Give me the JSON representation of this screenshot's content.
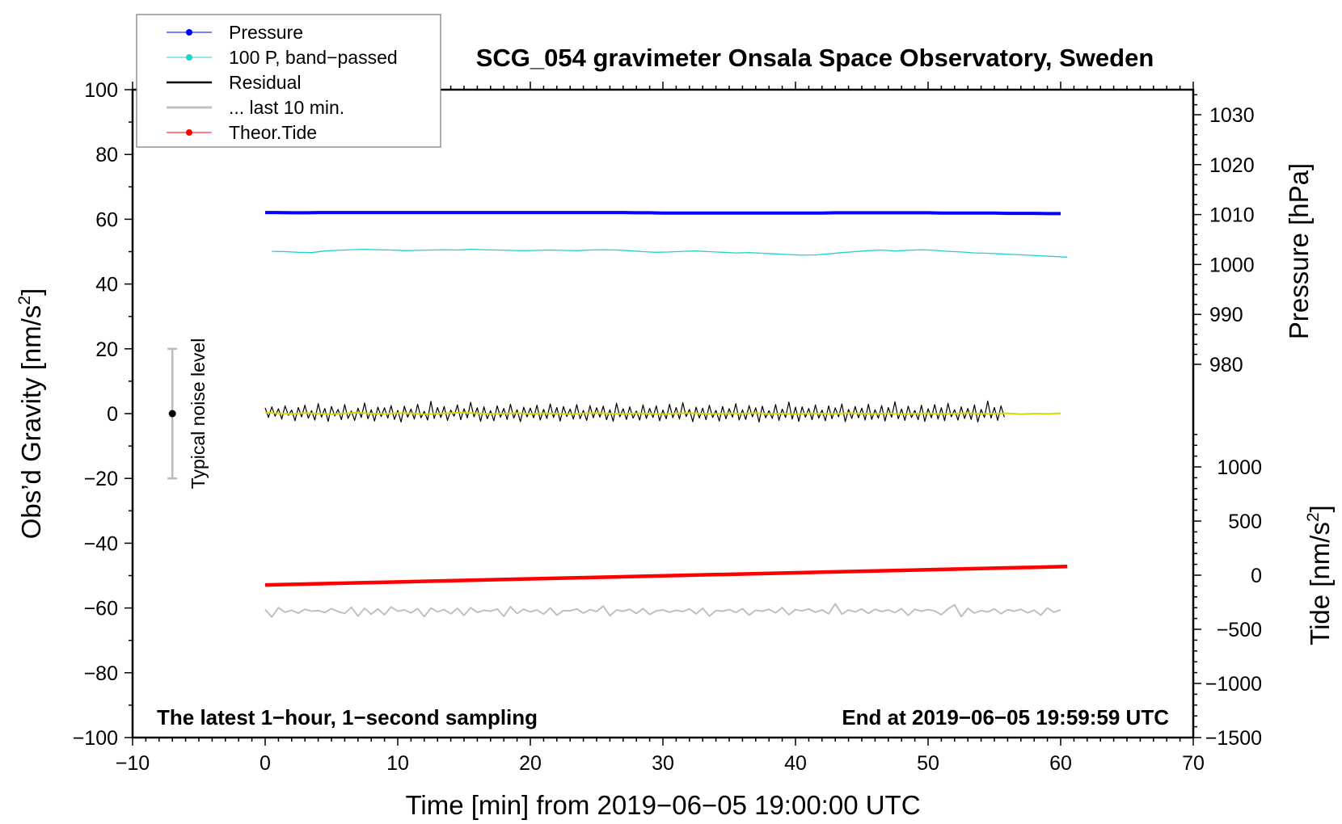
{
  "chart_data": {
    "type": "line",
    "title": "SCG_054 gravimeter Onsala Space Observatory, Sweden",
    "xlabel": "Time [min] from 2019−06−05 19:00:00 UTC",
    "ylabel": {
      "text": "Obs’d Gravity [nm/s",
      "sup": "2",
      "end": "]"
    },
    "y2label": "Pressure [hPa]",
    "y3label": {
      "text": "Tide [nm/s",
      "sup": "2",
      "end": "]"
    },
    "xlim": [
      -10,
      70
    ],
    "ylim": [
      -100,
      100
    ],
    "pressure_lim_ticks": [
      980,
      1030
    ],
    "tide_lim": [
      -1500,
      1000
    ],
    "x_ticks": [
      "−10",
      "0",
      "10",
      "20",
      "30",
      "40",
      "50",
      "60",
      "70"
    ],
    "y_ticks": [
      "−100",
      "−80",
      "−60",
      "−40",
      "−20",
      "0",
      "20",
      "40",
      "60",
      "80",
      "100"
    ],
    "pressure_ticks": [
      "980",
      "990",
      "1000",
      "1010",
      "1020",
      "1030"
    ],
    "tide_ticks": [
      "−1500",
      "−1000",
      "−500",
      "0",
      "500",
      "1000"
    ],
    "annotation_left": "The latest 1−hour, 1−second sampling",
    "annotation_right": "End at 2019−06−05 19:59:59 UTC",
    "noise_indicator": {
      "label": "Typical noise level",
      "x": -7,
      "center": 0,
      "half_range": 20
    },
    "legend": {
      "placement": "top-left",
      "entries": [
        "Pressure",
        "100 P, band−passed",
        "Residual",
        "... last 10 min.",
        "Theor.Tide"
      ]
    },
    "colors": {
      "pressure": "#0000ff",
      "bandpassed": "#20d0d0",
      "residual": "#000000",
      "smoothed": "#d8d800",
      "last10": "#c0c0c0",
      "tide": "#ff0000"
    },
    "series": [
      {
        "name": "Pressure",
        "axis": "pressure_hPa",
        "x_start": 0,
        "x_step": 1,
        "values": [
          1010.4,
          1010.4,
          1010.35,
          1010.35,
          1010.4,
          1010.4,
          1010.4,
          1010.4,
          1010.4,
          1010.4,
          1010.4,
          1010.4,
          1010.4,
          1010.4,
          1010.4,
          1010.4,
          1010.4,
          1010.4,
          1010.4,
          1010.4,
          1010.4,
          1010.4,
          1010.4,
          1010.4,
          1010.4,
          1010.4,
          1010.4,
          1010.4,
          1010.35,
          1010.35,
          1010.3,
          1010.3,
          1010.3,
          1010.3,
          1010.3,
          1010.3,
          1010.3,
          1010.3,
          1010.3,
          1010.3,
          1010.3,
          1010.3,
          1010.3,
          1010.35,
          1010.35,
          1010.35,
          1010.35,
          1010.35,
          1010.35,
          1010.35,
          1010.35,
          1010.3,
          1010.3,
          1010.3,
          1010.3,
          1010.3,
          1010.25,
          1010.25,
          1010.25,
          1010.2,
          1010.2
        ]
      },
      {
        "name": "100 P, band−passed",
        "axis": "gravity",
        "x_start": 0.5,
        "x_step": 1,
        "values": [
          50.1,
          50.0,
          49.8,
          49.7,
          50.2,
          50.4,
          50.6,
          50.7,
          50.6,
          50.5,
          50.3,
          50.4,
          50.5,
          50.6,
          50.5,
          50.7,
          50.6,
          50.5,
          50.4,
          50.3,
          50.4,
          50.5,
          50.4,
          50.3,
          50.5,
          50.6,
          50.5,
          50.3,
          50.0,
          49.8,
          49.9,
          50.1,
          50.2,
          50.0,
          49.8,
          49.6,
          49.7,
          49.5,
          49.3,
          49.1,
          48.9,
          49.0,
          49.3,
          49.7,
          50.0,
          50.3,
          50.5,
          50.2,
          50.4,
          50.6,
          50.4,
          50.1,
          49.9,
          49.6,
          49.5,
          49.3,
          49.1,
          48.9,
          48.7,
          48.5,
          48.3
        ]
      },
      {
        "name": "Residual",
        "axis": "gravity",
        "x_start": 0,
        "x_step": 0.25,
        "values": [
          1.8,
          -1.2,
          2.1,
          -0.8,
          1.5,
          -1.7,
          2.4,
          -0.5,
          1.1,
          -2.2,
          1.9,
          -1.0,
          2.6,
          -1.4,
          0.9,
          -2.0,
          3.1,
          -1.1,
          1.6,
          -2.4,
          2.2,
          -0.7,
          1.3,
          -1.9,
          2.8,
          -1.5,
          0.8,
          -2.1,
          1.7,
          -1.2,
          3.3,
          -1.6,
          1.2,
          -2.3,
          2.0,
          -0.9,
          1.8,
          -1.4,
          2.5,
          -1.8,
          1.0,
          -2.6,
          2.3,
          -1.1,
          1.4,
          -1.7,
          2.9,
          -1.3,
          0.7,
          -2.0,
          3.8,
          -1.5,
          1.9,
          -1.2,
          2.2,
          -2.1,
          1.1,
          -0.8,
          2.7,
          -1.9,
          1.5,
          -1.3,
          3.5,
          -1.0,
          1.8,
          -2.4,
          2.1,
          -1.6,
          0.9,
          -2.2,
          2.4,
          -1.1,
          1.6,
          -1.8,
          2.9,
          -1.4,
          1.2,
          -2.5,
          2.0,
          -1.0,
          1.7,
          -1.3,
          2.6,
          -2.0,
          1.3,
          -1.5,
          3.0,
          -1.2,
          1.9,
          -2.3,
          2.2,
          -0.9,
          1.4,
          -1.7,
          2.8,
          -1.6,
          1.0,
          -2.1,
          2.5,
          -1.3,
          1.8,
          -1.1,
          2.3,
          -1.9,
          1.2,
          -2.4,
          3.2,
          -1.0,
          1.5,
          -1.8,
          2.1,
          -1.4,
          0.8,
          -2.0,
          2.7,
          -1.5,
          1.6,
          -1.2,
          2.4,
          -2.2,
          1.1,
          -1.6,
          2.9,
          -1.3,
          1.9,
          -1.7,
          3.4,
          -0.9,
          1.3,
          -2.5,
          2.0,
          -1.4,
          1.7,
          -1.9,
          2.6,
          -1.2,
          1.0,
          -2.3,
          2.2,
          -1.6,
          1.5,
          -1.1,
          3.1,
          -2.0,
          1.2,
          -1.8,
          2.5,
          -1.0,
          1.8,
          -2.6,
          2.3,
          -1.3,
          0.9,
          -1.5,
          2.8,
          -2.1,
          1.4,
          -1.2,
          3.6,
          -1.7,
          2.0,
          -2.4,
          2.1,
          -1.1,
          1.6,
          -1.9,
          2.7,
          -1.4,
          1.1,
          -2.2,
          2.4,
          -1.6,
          1.8,
          -1.0,
          3.0,
          -2.5,
          1.3,
          -1.5,
          2.2,
          -1.3,
          1.7,
          -2.0,
          2.9,
          -1.8,
          1.2,
          -1.4,
          2.5,
          -2.3,
          1.9,
          -1.1,
          3.7,
          -1.6,
          1.4,
          -2.1,
          2.3,
          -1.2,
          1.0,
          -1.9,
          2.6,
          -2.4,
          1.5,
          -1.3,
          2.8,
          -1.7,
          1.8,
          -2.2,
          3.2,
          -1.0,
          1.2,
          -2.0,
          2.1,
          -1.5,
          1.6,
          -1.8,
          2.7,
          -2.6,
          1.3,
          -1.2,
          3.9,
          -1.4,
          1.9,
          -2.1,
          2.4,
          -1.1
        ]
      },
      {
        "name": "Residual smoothed",
        "axis": "gravity",
        "x_start": 0,
        "x_step": 1,
        "values": [
          0.3,
          0.1,
          -0.1,
          0.2,
          0.0,
          -0.2,
          0.1,
          0.3,
          0.0,
          -0.1,
          0.2,
          0.1,
          -0.2,
          0.0,
          0.2,
          0.3,
          0.1,
          -0.1,
          0.0,
          0.2,
          -0.1,
          0.1,
          0.0,
          -0.2,
          0.1,
          0.2,
          0.0,
          -0.1,
          0.1,
          0.0,
          -0.2,
          0.1,
          0.2,
          0.0,
          -0.1,
          0.1,
          0.0,
          0.2,
          -0.1,
          0.0,
          -0.2,
          0.1,
          0.0,
          -0.1,
          0.2,
          0.0,
          -0.1,
          0.1,
          -0.2,
          0.0,
          0.1,
          -0.1,
          0.0,
          0.2,
          -0.1,
          0.0,
          0.1,
          -0.2,
          0.0,
          -0.1,
          0.1
        ]
      },
      {
        "name": "... last 10 min.",
        "axis": "gravity",
        "x_start": 0,
        "x_step": 0.5,
        "values": [
          -60.5,
          -62.8,
          -59.9,
          -61.3,
          -60.7,
          -61.6,
          -60.4,
          -61.0,
          -60.8,
          -61.4,
          -60.2,
          -61.1,
          -61.7,
          -59.8,
          -62.5,
          -60.1,
          -61.9,
          -60.3,
          -62.1,
          -59.7,
          -61.0,
          -60.6,
          -61.5,
          -60.2,
          -62.7,
          -60.0,
          -61.2,
          -60.5,
          -61.8,
          -60.1,
          -62.3,
          -59.9,
          -61.4,
          -60.7,
          -61.0,
          -60.3,
          -62.6,
          -59.6,
          -61.7,
          -60.4,
          -61.2,
          -60.6,
          -61.9,
          -60.0,
          -62.2,
          -60.8,
          -60.9,
          -60.3,
          -61.6,
          -60.5,
          -61.1,
          -59.4,
          -62.4,
          -60.6,
          -61.0,
          -60.4,
          -61.7,
          -60.2,
          -62.0,
          -60.9,
          -60.6,
          -61.3,
          -60.7,
          -61.1,
          -60.3,
          -61.8,
          -60.1,
          -62.5,
          -60.8,
          -61.0,
          -60.5,
          -61.4,
          -60.2,
          -62.2,
          -60.7,
          -61.0,
          -60.4,
          -61.5,
          -59.9,
          -62.1,
          -60.5,
          -60.9,
          -60.3,
          -61.3,
          -60.6,
          -61.8,
          -58.7,
          -61.9,
          -60.6,
          -61.2,
          -60.3,
          -61.7,
          -60.4,
          -61.1,
          -60.6,
          -61.4,
          -60.2,
          -62.3,
          -60.4,
          -61.0,
          -60.5,
          -60.9,
          -62.1,
          -60.3,
          -59.0,
          -62.7,
          -60.1,
          -61.6,
          -60.8,
          -61.2,
          -60.3,
          -61.8,
          -60.5,
          -61.0,
          -60.4,
          -61.5,
          -60.7,
          -62.2,
          -60.0,
          -61.3,
          -60.6
        ]
      },
      {
        "name": "Theor.Tide",
        "axis": "tide",
        "x": [
          0,
          60.5
        ],
        "values": [
          -90,
          80
        ]
      }
    ]
  }
}
